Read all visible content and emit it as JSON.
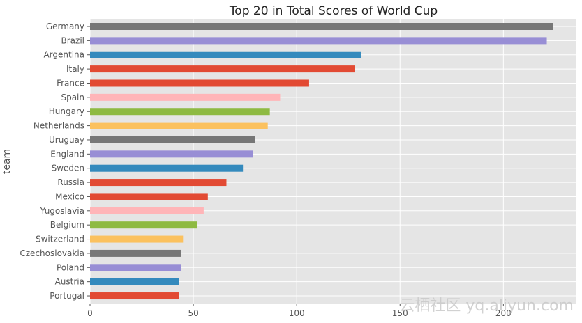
{
  "chart_data": {
    "type": "bar",
    "orientation": "horizontal",
    "title": "Top 20 in Total Scores of World Cup",
    "xlabel": "",
    "ylabel": "team",
    "xlim": [
      0,
      235
    ],
    "xticks": [
      0,
      50,
      100,
      150,
      200
    ],
    "grid": true,
    "categories": [
      "Germany",
      "Brazil",
      "Argentina",
      "Italy",
      "France",
      "Spain",
      "Hungary",
      "Netherlands",
      "Uruguay",
      "England",
      "Sweden",
      "Russia",
      "Mexico",
      "Yugoslavia",
      "Belgium",
      "Switzerland",
      "Czechoslovakia",
      "Poland",
      "Austria",
      "Portugal"
    ],
    "values": [
      224,
      221,
      131,
      128,
      106,
      92,
      87,
      86,
      80,
      79,
      74,
      66,
      57,
      55,
      52,
      45,
      44,
      44,
      43,
      43
    ],
    "colors": [
      "#777777",
      "#988ED5",
      "#348ABD",
      "#E24A33",
      "#E24A33",
      "#FFB5B8",
      "#8EBA42",
      "#FBC15E",
      "#777777",
      "#988ED5",
      "#348ABD",
      "#E24A33",
      "#E24A33",
      "#FFB5B8",
      "#8EBA42",
      "#FBC15E",
      "#777777",
      "#988ED5",
      "#348ABD",
      "#E24A33"
    ],
    "background_color": "#E5E5E5"
  },
  "watermark": "云栖社区 yq.aliyun.com"
}
